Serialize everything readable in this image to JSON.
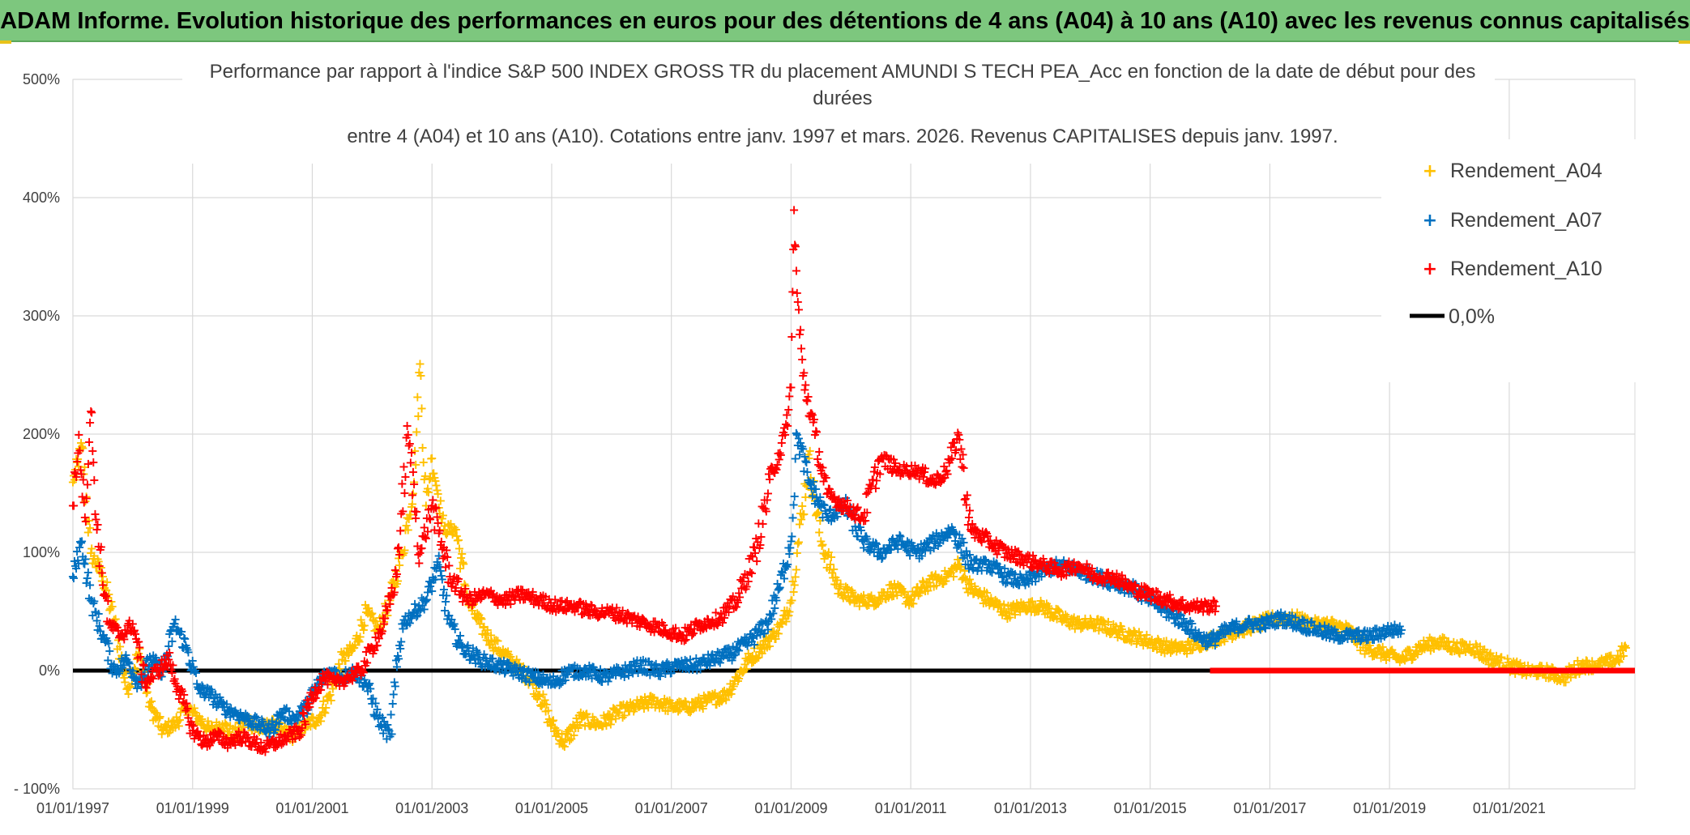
{
  "banner": {
    "title": "ADAM Informe. Evolution historique des performances en euros pour des détentions de 4 ans (A04) à 10 ans (A10) avec les revenus connus capitalisés",
    "color": "#7dc77e"
  },
  "chart_data": {
    "type": "scatter",
    "title_lines": [
      "Performance par rapport à l'indice S&P 500 INDEX GROSS TR  du placement AMUNDI S TECH PEA_Acc en fonction de la date de début pour des",
      "durées",
      "entre 4 (A04) et 10 ans (A10). Cotations entre janv. 1997 et mars. 2026. Revenus CAPITALISES depuis janv. 1997."
    ],
    "y_ticks": [
      "- 100%",
      "0%",
      "100%",
      "200%",
      "300%",
      "400%",
      "500%"
    ],
    "y_tick_values": [
      -100,
      0,
      100,
      200,
      300,
      400,
      500
    ],
    "ylim": [
      -100,
      500
    ],
    "x_ticks": [
      "01/01/1997",
      "01/01/1999",
      "01/01/2001",
      "01/01/2003",
      "01/01/2005",
      "01/01/2007",
      "01/01/2009",
      "01/01/2011",
      "01/01/2013",
      "01/01/2015",
      "01/01/2017",
      "01/01/2019",
      "01/01/2021"
    ],
    "x_tick_values": [
      1997,
      1999,
      2001,
      2003,
      2005,
      2007,
      2009,
      2011,
      2013,
      2015,
      2017,
      2019,
      2021
    ],
    "xlim": [
      1997,
      2023.1
    ],
    "legend": [
      {
        "name": "Rendement_A04",
        "marker": "+",
        "color": "#ffc000"
      },
      {
        "name": "Rendement_A07",
        "marker": "+",
        "color": "#0070c0"
      },
      {
        "name": "Rendement_A10",
        "marker": "+",
        "color": "#ff0000"
      },
      {
        "name": "0,0%",
        "marker": "line",
        "color": "#000000"
      }
    ],
    "baseline": {
      "name": "0,0%",
      "value": 0,
      "x": [
        1997,
        2023.1
      ]
    },
    "series": [
      {
        "name": "Rendement_A04",
        "color": "#ffc000",
        "x": [
          1997.0,
          1997.15,
          1997.3,
          1997.5,
          1997.7,
          1997.9,
          1998.1,
          1998.3,
          1998.5,
          1998.7,
          1998.9,
          1999.1,
          1999.3,
          1999.5,
          1999.7,
          1999.9,
          2000.1,
          2000.3,
          2000.5,
          2000.7,
          2000.9,
          2001.1,
          2001.3,
          2001.5,
          2001.7,
          2001.9,
          2002.1,
          2002.3,
          2002.5,
          2002.7,
          2002.8,
          2002.9,
          2003.0,
          2003.1,
          2003.2,
          2003.4,
          2003.6,
          2003.8,
          2004.0,
          2004.2,
          2004.4,
          2004.6,
          2004.8,
          2005.0,
          2005.2,
          2005.5,
          2005.8,
          2006.1,
          2006.4,
          2006.7,
          2007.0,
          2007.3,
          2007.6,
          2007.9,
          2008.1,
          2008.3,
          2008.5,
          2008.7,
          2008.85,
          2009.0,
          2009.1,
          2009.3,
          2009.5,
          2009.8,
          2010.1,
          2010.4,
          2010.7,
          2011.0,
          2011.3,
          2011.6,
          2011.8,
          2012.0,
          2012.3,
          2012.6,
          2012.9,
          2013.2,
          2013.5,
          2013.8,
          2014.1,
          2014.4,
          2014.7,
          2015.0,
          2015.3,
          2015.6,
          2015.9,
          2016.2,
          2016.5,
          2016.8,
          2017.1,
          2017.4,
          2017.7,
          2018.0,
          2018.3,
          2018.6,
          2018.9,
          2019.2,
          2019.5,
          2019.8,
          2020.1,
          2020.4,
          2020.7,
          2021.0,
          2021.3,
          2021.6,
          2021.9,
          2022.2,
          2022.5,
          2022.8,
          2022.95
        ],
        "y": [
          160,
          190,
          100,
          80,
          40,
          -15,
          15,
          -30,
          -50,
          -45,
          -30,
          -40,
          -50,
          -45,
          -55,
          -40,
          -50,
          -45,
          -50,
          -55,
          -45,
          -40,
          -20,
          10,
          20,
          50,
          35,
          60,
          100,
          160,
          260,
          140,
          180,
          150,
          120,
          120,
          60,
          40,
          25,
          15,
          5,
          -5,
          -20,
          -45,
          -60,
          -40,
          -45,
          -35,
          -30,
          -25,
          -30,
          -30,
          -25,
          -20,
          -5,
          10,
          20,
          30,
          40,
          60,
          100,
          180,
          110,
          70,
          60,
          60,
          70,
          60,
          75,
          80,
          90,
          70,
          60,
          50,
          55,
          55,
          45,
          40,
          40,
          35,
          30,
          25,
          20,
          20,
          25,
          30,
          35,
          40,
          45,
          45,
          40,
          40,
          35,
          20,
          15,
          10,
          20,
          25,
          20,
          20,
          10,
          5,
          0,
          0,
          -5,
          5,
          5,
          10,
          20
        ]
      },
      {
        "name": "Rendement_A07",
        "color": "#0070c0",
        "x": [
          1997.0,
          1997.15,
          1997.3,
          1997.5,
          1997.7,
          1997.9,
          1998.1,
          1998.3,
          1998.5,
          1998.7,
          1998.9,
          1999.1,
          1999.3,
          1999.5,
          1999.7,
          1999.9,
          2000.1,
          2000.3,
          2000.5,
          2000.7,
          2000.9,
          2001.1,
          2001.3,
          2001.5,
          2001.7,
          2001.9,
          2002.1,
          2002.3,
          2002.5,
          2002.7,
          2002.9,
          2003.1,
          2003.3,
          2003.5,
          2003.8,
          2004.1,
          2004.4,
          2004.7,
          2005.0,
          2005.3,
          2005.6,
          2005.9,
          2006.2,
          2006.5,
          2006.8,
          2007.1,
          2007.4,
          2007.7,
          2008.0,
          2008.3,
          2008.6,
          2008.8,
          2009.0,
          2009.1,
          2009.3,
          2009.6,
          2009.9,
          2010.2,
          2010.5,
          2010.8,
          2011.1,
          2011.4,
          2011.7,
          2012.0,
          2012.3,
          2012.6,
          2012.9,
          2013.2,
          2013.5,
          2013.8,
          2014.1,
          2014.4,
          2014.7,
          2015.0,
          2015.3,
          2015.6,
          2015.8,
          2016.0,
          2016.3,
          2016.6,
          2016.9,
          2017.2,
          2017.5,
          2017.8,
          2018.1,
          2018.4,
          2018.7,
          2019.0,
          2019.2
        ],
        "y": [
          80,
          110,
          60,
          30,
          0,
          10,
          -10,
          10,
          0,
          40,
          20,
          -15,
          -20,
          -30,
          -35,
          -40,
          -45,
          -50,
          -35,
          -40,
          -30,
          -10,
          0,
          -5,
          0,
          -10,
          -40,
          -55,
          40,
          50,
          60,
          90,
          40,
          20,
          10,
          5,
          0,
          -5,
          -10,
          0,
          0,
          -5,
          0,
          5,
          0,
          5,
          5,
          10,
          15,
          25,
          40,
          70,
          110,
          200,
          160,
          130,
          140,
          110,
          100,
          110,
          100,
          110,
          120,
          90,
          90,
          80,
          75,
          85,
          90,
          85,
          80,
          75,
          70,
          60,
          50,
          40,
          30,
          25,
          35,
          40,
          40,
          45,
          40,
          35,
          30,
          30,
          30,
          35,
          35
        ]
      },
      {
        "name": "Rendement_A10",
        "color": "#ff0000",
        "x": [
          1997.0,
          1997.1,
          1997.2,
          1997.3,
          1997.4,
          1997.6,
          1997.8,
          1998.0,
          1998.2,
          1998.4,
          1998.6,
          1998.8,
          1999.0,
          1999.2,
          1999.4,
          1999.6,
          1999.8,
          2000.0,
          2000.2,
          2000.4,
          2000.6,
          2000.8,
          2001.0,
          2001.2,
          2001.4,
          2001.6,
          2001.8,
          2002.0,
          2002.2,
          2002.4,
          2002.6,
          2002.8,
          2003.0,
          2003.3,
          2003.6,
          2003.9,
          2004.2,
          2004.5,
          2004.8,
          2005.1,
          2005.4,
          2005.7,
          2006.0,
          2006.3,
          2006.6,
          2006.9,
          2007.2,
          2007.5,
          2007.8,
          2008.1,
          2008.4,
          2008.7,
          2008.9,
          2009.0,
          2009.05,
          2009.1,
          2009.2,
          2009.4,
          2009.6,
          2009.9,
          2010.2,
          2010.5,
          2010.8,
          2011.1,
          2011.4,
          2011.6,
          2011.8,
          2012.0,
          2012.3,
          2012.6,
          2012.9,
          2013.2,
          2013.5,
          2013.8,
          2014.1,
          2014.4,
          2014.7,
          2015.0,
          2015.3,
          2015.6,
          2015.9,
          2016.1
        ],
        "y": [
          140,
          200,
          130,
          220,
          120,
          40,
          30,
          40,
          -10,
          0,
          10,
          -20,
          -50,
          -60,
          -55,
          -60,
          -55,
          -60,
          -65,
          -60,
          -55,
          -50,
          -20,
          -5,
          -10,
          -5,
          0,
          20,
          40,
          80,
          200,
          100,
          140,
          80,
          60,
          65,
          60,
          65,
          60,
          55,
          55,
          50,
          50,
          45,
          40,
          35,
          30,
          40,
          45,
          60,
          100,
          170,
          200,
          240,
          390,
          320,
          250,
          200,
          150,
          140,
          130,
          180,
          170,
          170,
          160,
          170,
          200,
          120,
          110,
          100,
          95,
          90,
          85,
          90,
          80,
          80,
          70,
          65,
          60,
          55,
          55,
          55
        ]
      }
    ],
    "flat_red_segment": {
      "series": "Rendement_A10",
      "x": [
        2016.0,
        2023.1
      ],
      "value": 0
    }
  }
}
